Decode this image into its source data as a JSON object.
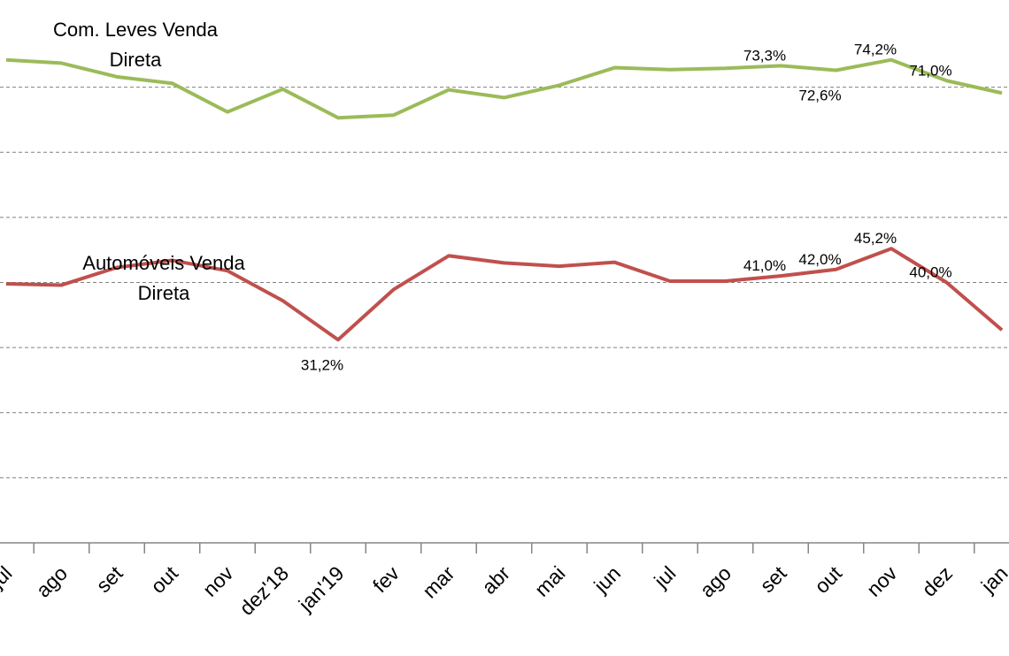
{
  "chart_data": {
    "type": "line",
    "categories": [
      "jul",
      "ago",
      "set",
      "out",
      "nov",
      "dez'18",
      "jan'19",
      "fev",
      "mar",
      "abr",
      "mai",
      "jun",
      "jul",
      "ago",
      "set",
      "out",
      "nov",
      "dez",
      "jan"
    ],
    "series": [
      {
        "name": "Com. Leves Venda Direta",
        "color": "#9bbb59",
        "values": [
          74.2,
          73.7,
          71.6,
          70.6,
          66.2,
          69.7,
          65.3,
          65.7,
          69.6,
          68.4,
          70.3,
          73.0,
          72.7,
          72.9,
          73.3,
          72.6,
          74.2,
          71.0,
          69.1
        ],
        "value_labels": [
          null,
          null,
          null,
          null,
          null,
          null,
          null,
          null,
          null,
          null,
          null,
          null,
          null,
          null,
          "73,3%",
          "72,6%",
          "74,2%",
          "71,0%",
          null
        ]
      },
      {
        "name": "Automóveis Venda Direta",
        "color": "#c0504d",
        "values": [
          39.8,
          39.6,
          42.3,
          43.4,
          41.8,
          37.2,
          31.2,
          38.9,
          44.1,
          43.0,
          42.5,
          43.1,
          40.2,
          40.2,
          41.0,
          42.0,
          45.2,
          40.0,
          32.7
        ],
        "value_labels": [
          null,
          null,
          null,
          null,
          null,
          null,
          "31,2%",
          null,
          null,
          null,
          null,
          null,
          null,
          null,
          "41,0%",
          "42,0%",
          "45,2%",
          "40,0%",
          null
        ]
      }
    ],
    "ylim": [
      0,
      80
    ],
    "yticks": [
      0,
      10,
      20,
      30,
      40,
      50,
      60,
      70
    ],
    "grid": true
  }
}
